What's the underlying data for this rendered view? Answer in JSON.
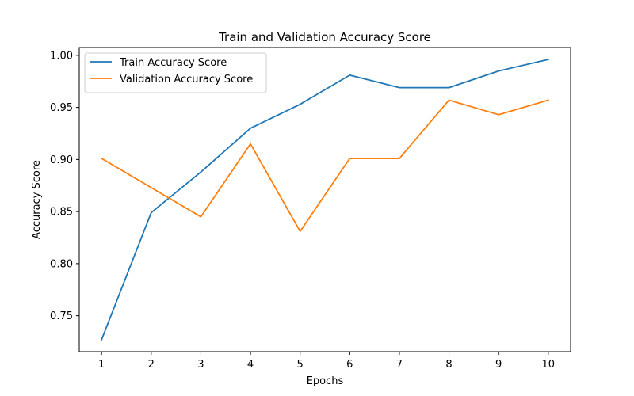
{
  "chart_data": {
    "type": "line",
    "title": "Train and Validation Accuracy Score",
    "xlabel": "Epochs",
    "ylabel": "Accuracy Score",
    "x": [
      1,
      2,
      3,
      4,
      5,
      6,
      7,
      8,
      9,
      10
    ],
    "xticks": [
      "1",
      "2",
      "3",
      "4",
      "5",
      "6",
      "7",
      "8",
      "9",
      "10"
    ],
    "yticks": [
      "0.75",
      "0.80",
      "0.85",
      "0.90",
      "0.95",
      "1.00"
    ],
    "xlim": [
      0.55,
      10.45
    ],
    "ylim": [
      0.7155,
      1.0075
    ],
    "grid": false,
    "legend_position": "upper-left",
    "series": [
      {
        "name": "Train Accuracy Score",
        "color": "#1f77b4",
        "values": [
          0.727,
          0.849,
          0.888,
          0.93,
          0.953,
          0.981,
          0.969,
          0.969,
          0.985,
          0.996
        ]
      },
      {
        "name": "Validation Accuracy Score",
        "color": "#ff7f0e",
        "values": [
          0.901,
          0.873,
          0.845,
          0.915,
          0.831,
          0.901,
          0.901,
          0.957,
          0.943,
          0.957
        ]
      }
    ]
  }
}
